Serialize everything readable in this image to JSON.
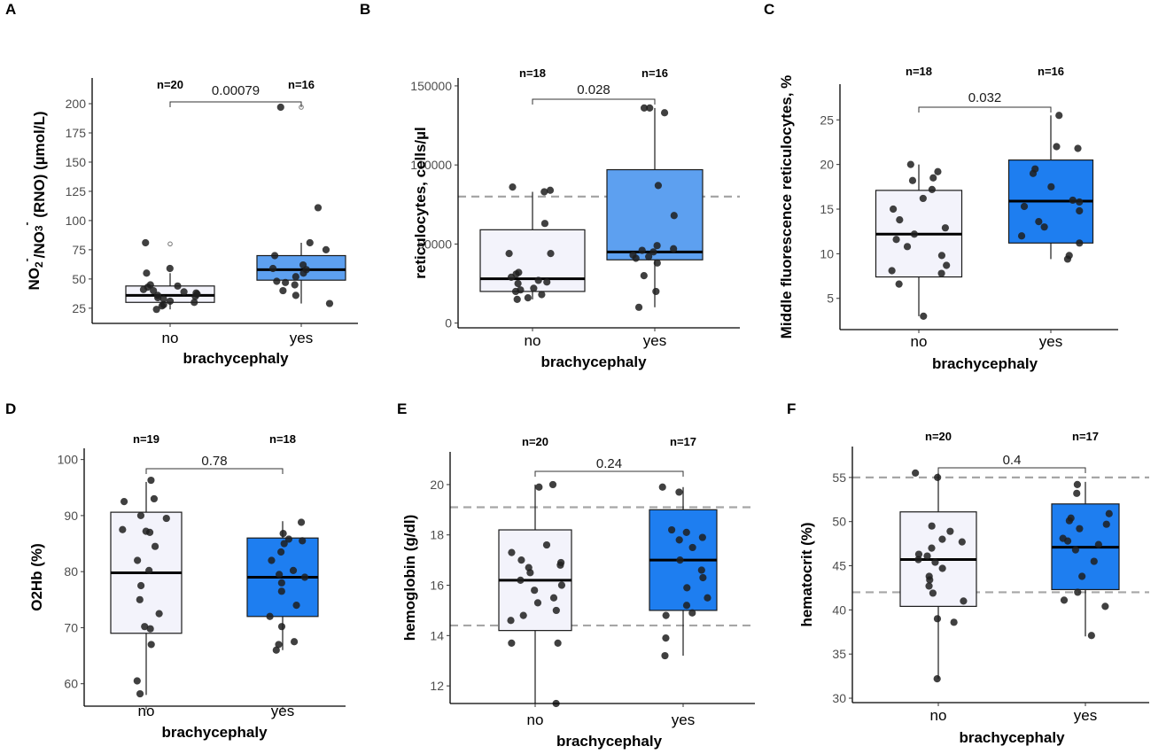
{
  "figure": {
    "ref_color": "#a6a6a6",
    "point_color": "#1f1f1f"
  },
  "chart_data": [
    {
      "type": "box",
      "panel": "A",
      "xlabel": "brachycephaly",
      "ylabel_parts": [
        "NO",
        "2",
        "-",
        "/NO",
        "3",
        "-",
        " (RNO)  (µmol/L)"
      ],
      "categories": [
        "no",
        "yes"
      ],
      "yticks": [
        25,
        50,
        75,
        100,
        125,
        150,
        175,
        200
      ],
      "ylim": [
        12,
        222
      ],
      "n_labels": [
        "n=20",
        "n=16"
      ],
      "p_value": "0.00079",
      "ref_lines": [],
      "boxes": [
        {
          "q1": 30,
          "median": 36,
          "q3": 44,
          "whisker_low": 24,
          "whisker_high": 55,
          "fill": "#f3f3fb",
          "outliers": [
            80
          ]
        },
        {
          "q1": 49,
          "median": 58,
          "q3": 70,
          "whisker_low": 29,
          "whisker_high": 81,
          "fill": "#5da0f0",
          "outliers": [
            197
          ]
        }
      ],
      "points": [
        [
          30,
          38,
          41,
          33,
          35,
          43,
          27,
          31,
          44,
          40,
          55,
          37,
          28,
          45,
          59,
          24,
          81,
          39,
          34,
          36
        ],
        [
          197,
          111,
          81,
          75,
          62,
          58,
          70,
          55,
          47,
          48,
          40,
          59,
          36,
          29,
          45,
          52
        ]
      ]
    },
    {
      "type": "box",
      "panel": "B",
      "xlabel": "brachycephaly",
      "ylabel_parts": [
        "reticulocytes, cells/µl"
      ],
      "categories": [
        "no",
        "yes"
      ],
      "yticks": [
        0,
        50000,
        100000,
        150000
      ],
      "ylim": [
        -3000,
        155000
      ],
      "n_labels": [
        "n=18",
        "n=16"
      ],
      "p_value": "0.028",
      "ref_lines": [
        80000
      ],
      "boxes": [
        {
          "q1": 20000,
          "median": 28000,
          "q3": 59000,
          "whisker_low": 15000,
          "whisker_high": 83000,
          "fill": "#f3f3fb",
          "outliers": []
        },
        {
          "q1": 40000,
          "median": 45000,
          "q3": 97000,
          "whisker_low": 10000,
          "whisker_high": 136000,
          "fill": "#5da0f0",
          "outliers": []
        }
      ],
      "points": [
        [
          86000,
          84000,
          63000,
          44000,
          32000,
          29000,
          26000,
          25000,
          22000,
          18000,
          15000,
          16000,
          20000,
          27000,
          31000,
          83000,
          44000,
          21000
        ],
        [
          136000,
          133000,
          136000,
          87000,
          68000,
          49000,
          45000,
          46000,
          41000,
          38000,
          30000,
          20000,
          10000,
          42000,
          43000,
          47000
        ]
      ]
    },
    {
      "type": "box",
      "panel": "C",
      "xlabel": "brachycephaly",
      "ylabel_parts": [
        "Middle fluorescence reticulocytes, %"
      ],
      "categories": [
        "no",
        "yes"
      ],
      "yticks": [
        5,
        10,
        15,
        20,
        25
      ],
      "ylim": [
        1.5,
        29
      ],
      "n_labels": [
        "n=18",
        "n=16"
      ],
      "p_value": "0.032",
      "ref_lines": [],
      "boxes": [
        {
          "q1": 7.4,
          "median": 12.2,
          "q3": 17.1,
          "whisker_low": 3,
          "whisker_high": 20,
          "fill": "#f3f3fb",
          "outliers": []
        },
        {
          "q1": 11.2,
          "median": 15.9,
          "q3": 20.5,
          "whisker_low": 9.4,
          "whisker_high": 25.5,
          "fill": "#1e7ef0",
          "outliers": []
        }
      ],
      "points": [
        [
          20,
          18.5,
          18.2,
          17.2,
          16.2,
          15,
          13.8,
          12.9,
          12.2,
          11.6,
          10.8,
          9.8,
          8.7,
          8.1,
          7.8,
          6.6,
          3,
          19.2
        ],
        [
          25.5,
          22,
          21.8,
          19.5,
          19,
          17.5,
          16,
          15.8,
          15.3,
          14.8,
          13,
          12,
          11.2,
          9.8,
          9.4,
          13.6
        ]
      ]
    },
    {
      "type": "box",
      "panel": "D",
      "xlabel": "brachycephaly",
      "ylabel_parts": [
        "O2Hb (%)"
      ],
      "categories": [
        "no",
        "yes"
      ],
      "yticks": [
        60,
        70,
        80,
        90,
        100
      ],
      "ylim": [
        56,
        102
      ],
      "n_labels": [
        "n=19",
        "n=18"
      ],
      "p_value": "0.78",
      "ref_lines": [],
      "boxes": [
        {
          "q1": 69,
          "median": 79.8,
          "q3": 90.6,
          "whisker_low": 58,
          "whisker_high": 96,
          "fill": "#f3f3fb",
          "outliers": []
        },
        {
          "q1": 72,
          "median": 79,
          "q3": 86,
          "whisker_low": 66,
          "whisker_high": 89,
          "fill": "#1e7ef0",
          "outliers": []
        }
      ],
      "points": [
        [
          96.3,
          93,
          92.5,
          90,
          89.5,
          87.5,
          87,
          84.5,
          82,
          80.2,
          77.5,
          75,
          72.5,
          70.2,
          69.8,
          67,
          60.5,
          58.2,
          87.2
        ],
        [
          88.8,
          86.8,
          85.8,
          85.5,
          85,
          83.5,
          82,
          80.2,
          79,
          79.5,
          78,
          76.5,
          74,
          72,
          70.2,
          67.5,
          67,
          66
        ]
      ]
    },
    {
      "type": "box",
      "panel": "E",
      "xlabel": "brachycephaly",
      "ylabel_parts": [
        "hemoglobin (g/dl)"
      ],
      "categories": [
        "no",
        "yes"
      ],
      "yticks": [
        12,
        14,
        16,
        18,
        20
      ],
      "ylim": [
        11.3,
        21.3
      ],
      "n_labels": [
        "n=20",
        "n=17"
      ],
      "p_value": "0.24",
      "ref_lines": [
        19.1,
        14.4
      ],
      "boxes": [
        {
          "q1": 14.2,
          "median": 16.2,
          "q3": 18.2,
          "whisker_low": 11.3,
          "whisker_high": 20.0,
          "fill": "#f3f3fb",
          "outliers": []
        },
        {
          "q1": 15.0,
          "median": 17.0,
          "q3": 19.0,
          "whisker_low": 13.2,
          "whisker_high": 19.9,
          "fill": "#1e7ef0",
          "outliers": []
        }
      ],
      "points": [
        [
          20.0,
          19.9,
          17.6,
          17.3,
          17.0,
          16.9,
          16.8,
          16.5,
          16.2,
          16.0,
          15.8,
          15.5,
          15.3,
          15.0,
          14.8,
          14.6,
          13.7,
          13.7,
          11.3,
          16.7
        ],
        [
          19.9,
          19.7,
          18.2,
          18.1,
          17.9,
          17.8,
          17.5,
          17.0,
          16.6,
          16.3,
          15.9,
          15.5,
          15.2,
          14.9,
          14.8,
          13.9,
          13.2
        ]
      ]
    },
    {
      "type": "box",
      "panel": "F",
      "xlabel": "brachycephaly",
      "ylabel_parts": [
        "hematocrit (%)"
      ],
      "categories": [
        "no",
        "yes"
      ],
      "yticks": [
        30,
        35,
        40,
        45,
        50,
        55
      ],
      "ylim": [
        29.5,
        58.5
      ],
      "n_labels": [
        "n=20",
        "n=17"
      ],
      "p_value": "0.4",
      "ref_lines": [
        55,
        42
      ],
      "boxes": [
        {
          "q1": 40.4,
          "median": 45.7,
          "q3": 51.1,
          "whisker_low": 32.2,
          "whisker_high": 55.5,
          "fill": "#f3f3fb",
          "outliers": []
        },
        {
          "q1": 42.3,
          "median": 47.1,
          "q3": 52.0,
          "whisker_low": 37.0,
          "whisker_high": 54.5,
          "fill": "#1e7ef0",
          "outliers": []
        }
      ],
      "points": [
        [
          55.5,
          55.0,
          49.5,
          48.9,
          48.0,
          47.7,
          47.0,
          46.3,
          45.7,
          45.4,
          44.7,
          43.8,
          43.4,
          42.7,
          41.0,
          39.0,
          38.6,
          32.2,
          46.1,
          41.9
        ],
        [
          54.2,
          53.2,
          50.9,
          50.4,
          50.1,
          49.2,
          48.1,
          47.8,
          47.4,
          46.8,
          45.5,
          43.8,
          42.0,
          41.1,
          40.4,
          37.1,
          49.7
        ]
      ]
    }
  ]
}
